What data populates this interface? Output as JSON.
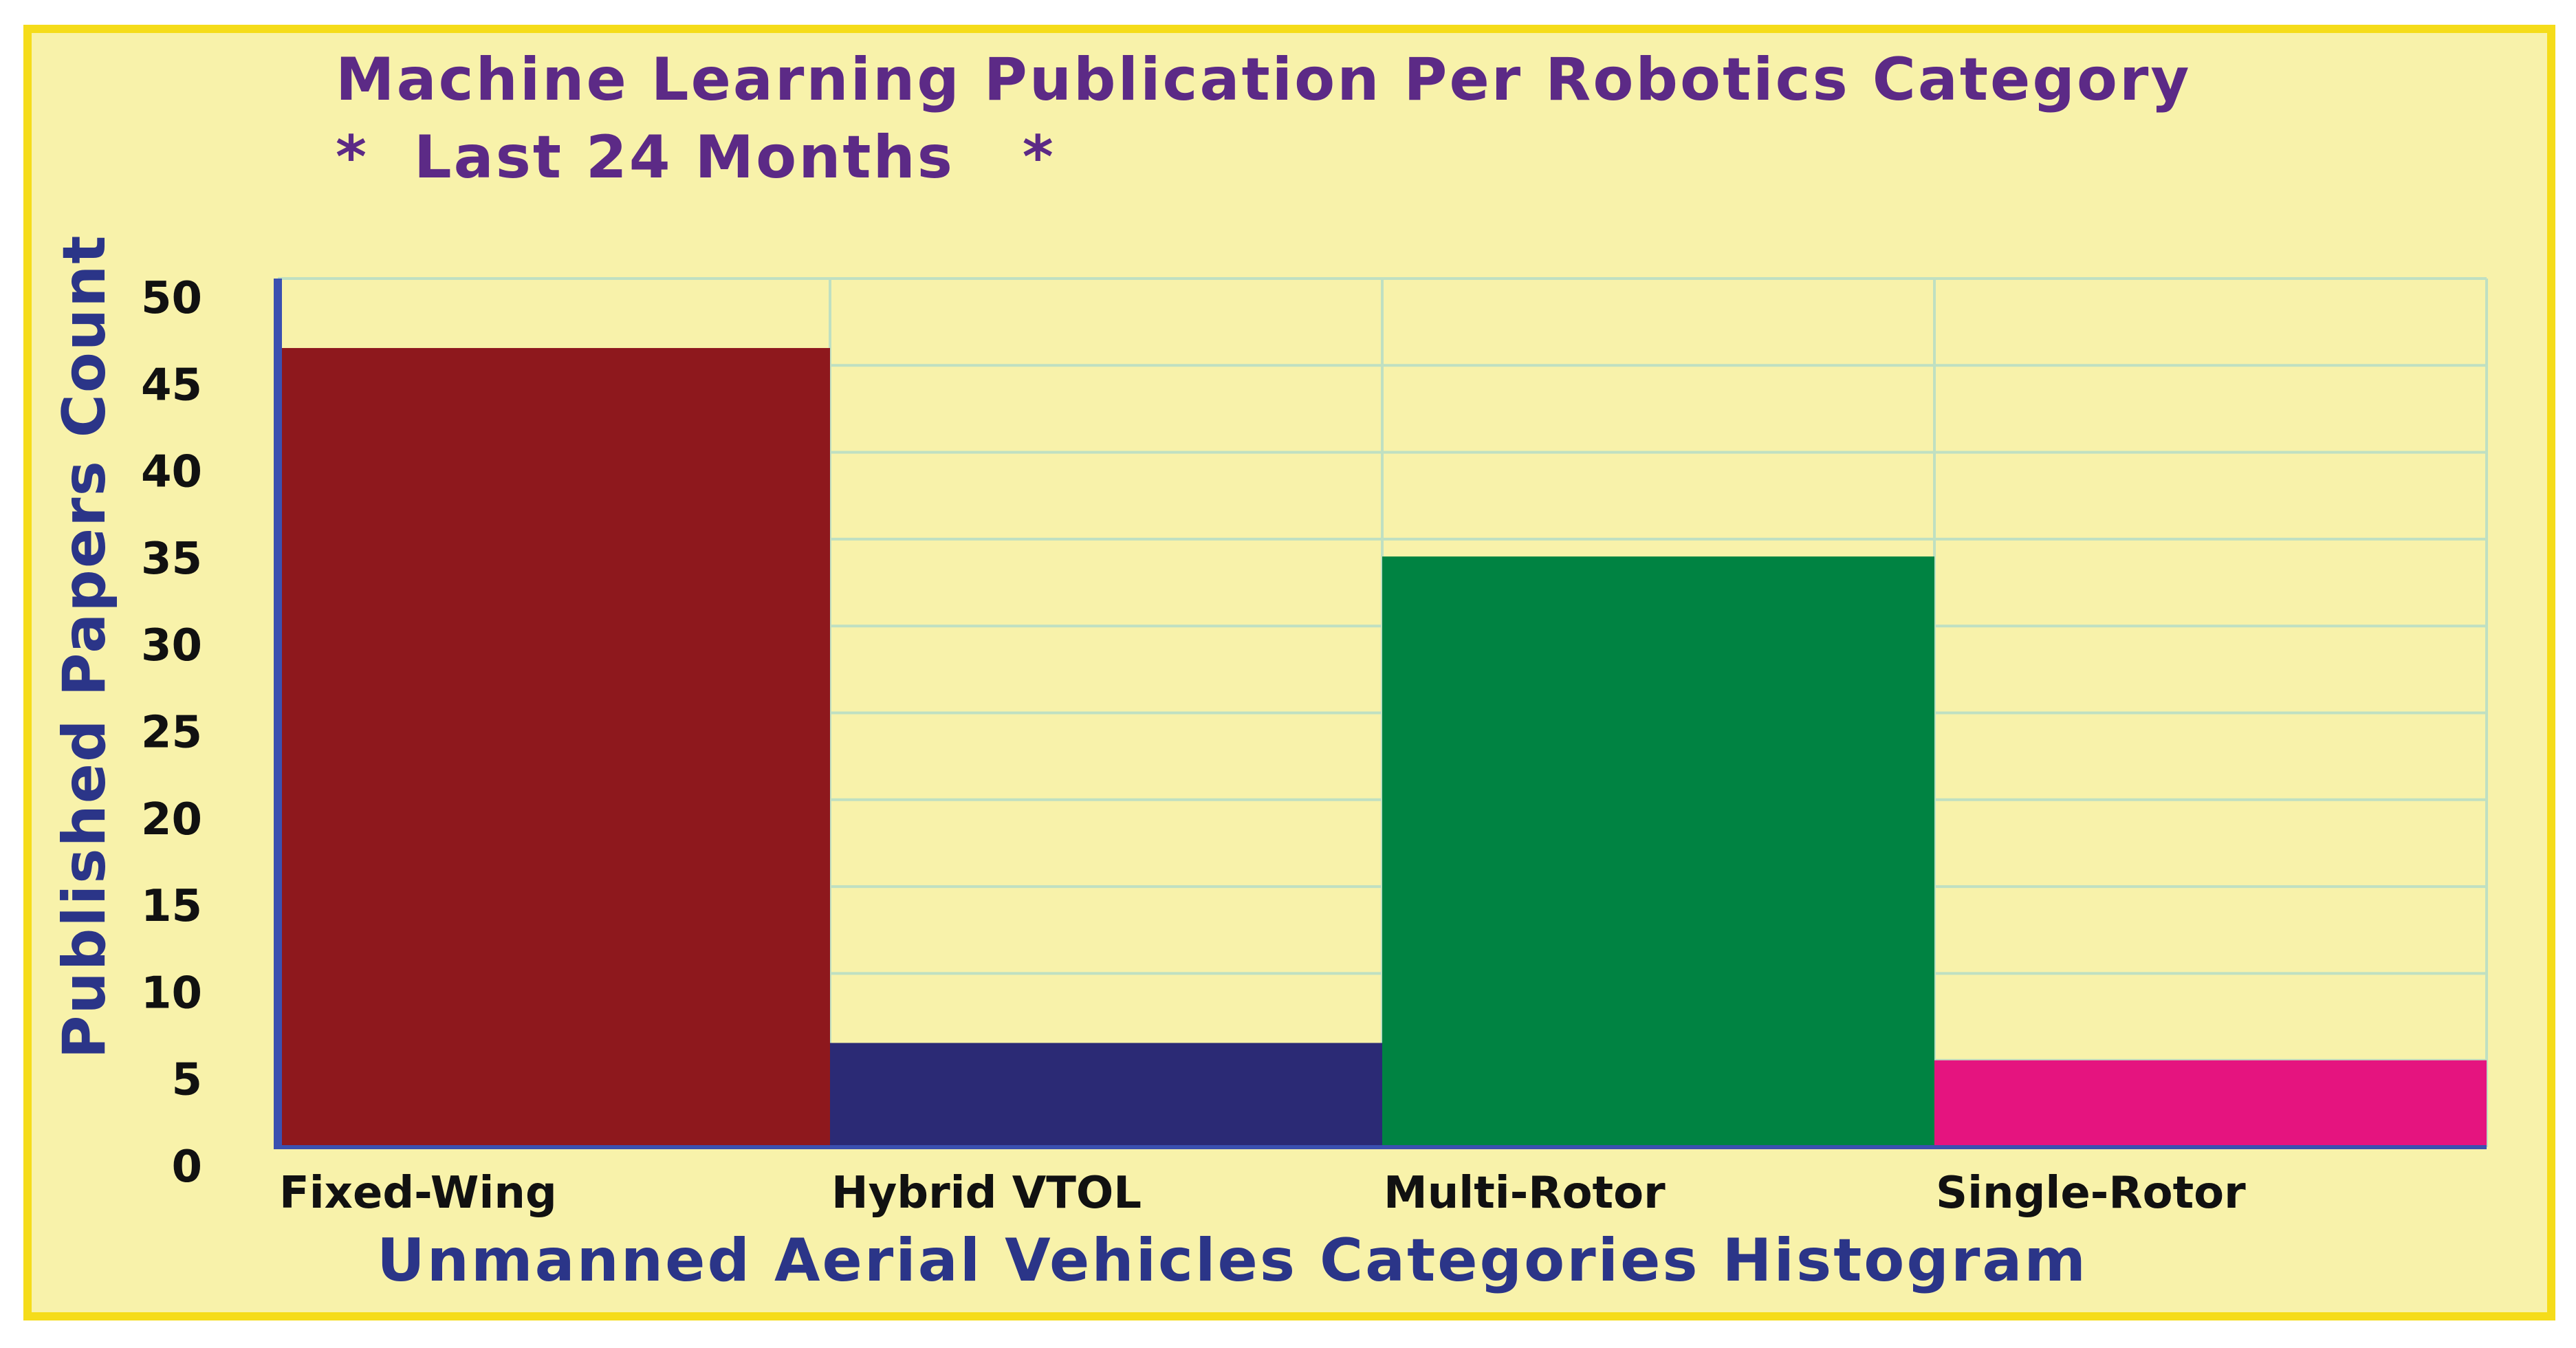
{
  "colors": {
    "background": "#F8F2AA",
    "frame": "#F5DC1A",
    "title": "#5C2A86",
    "axis_label": "#2B3588",
    "grid": "#BFE0C2",
    "axis_line": "#3B50B0"
  },
  "chart_data": {
    "type": "bar",
    "title": "Machine Learning Publication Per Robotics Category",
    "subtitle": "*  Last 24 Months   *",
    "xlabel": "Unmanned Aerial Vehicles Categories Histogram",
    "ylabel": "Published Papers Count",
    "categories": [
      "Fixed-Wing",
      "Hybrid VTOL",
      "Multi-Rotor",
      "Single-Rotor"
    ],
    "values": [
      46,
      6,
      34,
      5
    ],
    "bar_colors": [
      "#8E181D",
      "#2B2A75",
      "#008342",
      "#E5147F"
    ],
    "ylim": [
      0,
      50
    ],
    "yticks": [
      0,
      5,
      10,
      15,
      20,
      25,
      30,
      35,
      40,
      45,
      50
    ],
    "grid": true
  }
}
